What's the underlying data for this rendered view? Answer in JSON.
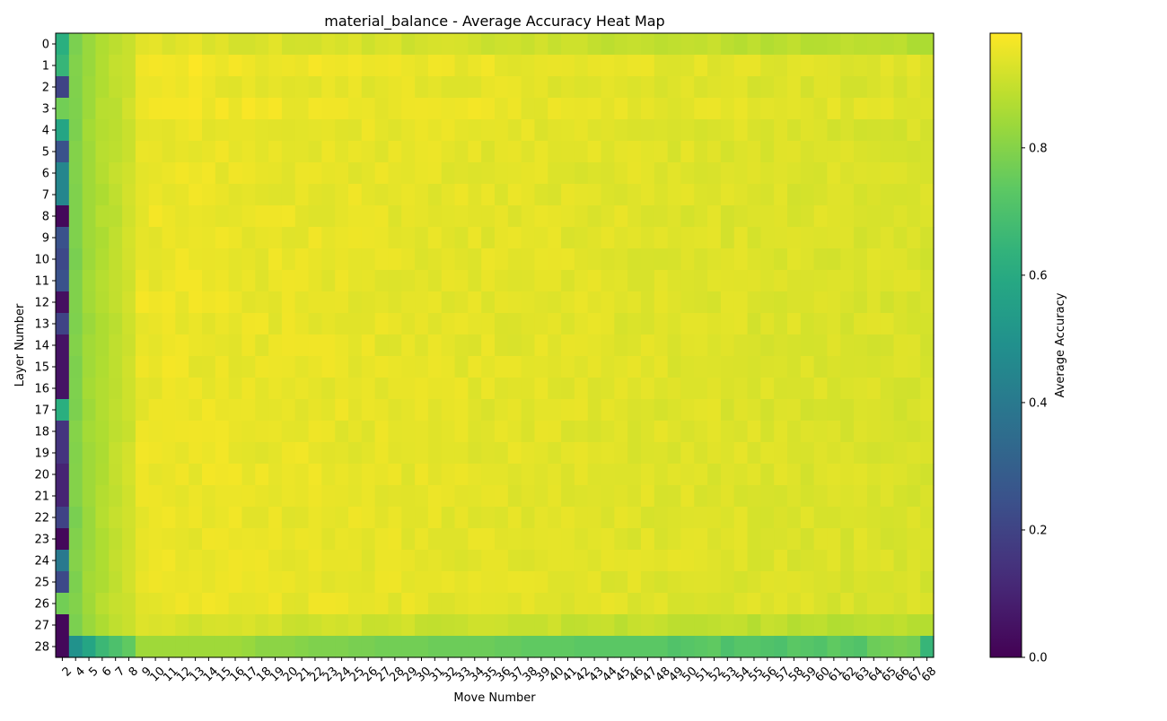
{
  "chart_data": {
    "type": "heatmap",
    "title": "material_balance - Average Accuracy Heat Map",
    "xlabel": "Move Number",
    "ylabel": "Layer Number",
    "colorbar_label": "Average Accuracy",
    "colormap": "viridis",
    "vmin": 0.0,
    "vmax": 0.98,
    "colorbar_ticks": [
      "0.0",
      "0.2",
      "0.4",
      "0.6",
      "0.8"
    ],
    "x": [
      2,
      4,
      5,
      6,
      7,
      8,
      9,
      10,
      11,
      12,
      13,
      14,
      15,
      16,
      17,
      18,
      19,
      20,
      21,
      22,
      23,
      24,
      25,
      26,
      27,
      28,
      29,
      30,
      31,
      32,
      33,
      34,
      35,
      36,
      37,
      38,
      39,
      40,
      41,
      42,
      43,
      44,
      45,
      46,
      47,
      48,
      49,
      50,
      51,
      52,
      53,
      54,
      55,
      56,
      57,
      58,
      59,
      60,
      61,
      62,
      63,
      64,
      65,
      66,
      67,
      68
    ],
    "y": [
      0,
      1,
      2,
      3,
      4,
      5,
      6,
      7,
      8,
      9,
      10,
      11,
      12,
      13,
      14,
      15,
      16,
      17,
      18,
      19,
      20,
      21,
      22,
      23,
      24,
      25,
      26,
      27,
      28
    ],
    "first_column_values": [
      0.62,
      0.65,
      0.2,
      0.77,
      0.58,
      0.25,
      0.45,
      0.45,
      0.02,
      0.25,
      0.22,
      0.25,
      0.04,
      0.2,
      0.05,
      0.05,
      0.05,
      0.62,
      0.15,
      0.15,
      0.1,
      0.1,
      0.2,
      0.02,
      0.4,
      0.22,
      0.77,
      0.02,
      0.02
    ],
    "row_profile": {
      "move_4": 0.79,
      "move_5": 0.84,
      "move_6": 0.87,
      "move_7": 0.89,
      "move_8": 0.91,
      "plateau_min": 0.91,
      "plateau_max": 0.98
    },
    "row_28_values": [
      0.02,
      0.5,
      0.58,
      0.66,
      0.7,
      0.74,
      0.84,
      0.84,
      0.84,
      0.84,
      0.84,
      0.84,
      0.84,
      0.84,
      0.83,
      0.81,
      0.81,
      0.81,
      0.8,
      0.79,
      0.79,
      0.79,
      0.78,
      0.78,
      0.77,
      0.77,
      0.77,
      0.77,
      0.76,
      0.76,
      0.76,
      0.76,
      0.76,
      0.75,
      0.75,
      0.74,
      0.74,
      0.74,
      0.74,
      0.73,
      0.73,
      0.73,
      0.73,
      0.73,
      0.73,
      0.73,
      0.71,
      0.72,
      0.73,
      0.74,
      0.7,
      0.72,
      0.72,
      0.71,
      0.7,
      0.73,
      0.72,
      0.71,
      0.74,
      0.72,
      0.71,
      0.76,
      0.77,
      0.78,
      0.77,
      0.65
    ]
  }
}
